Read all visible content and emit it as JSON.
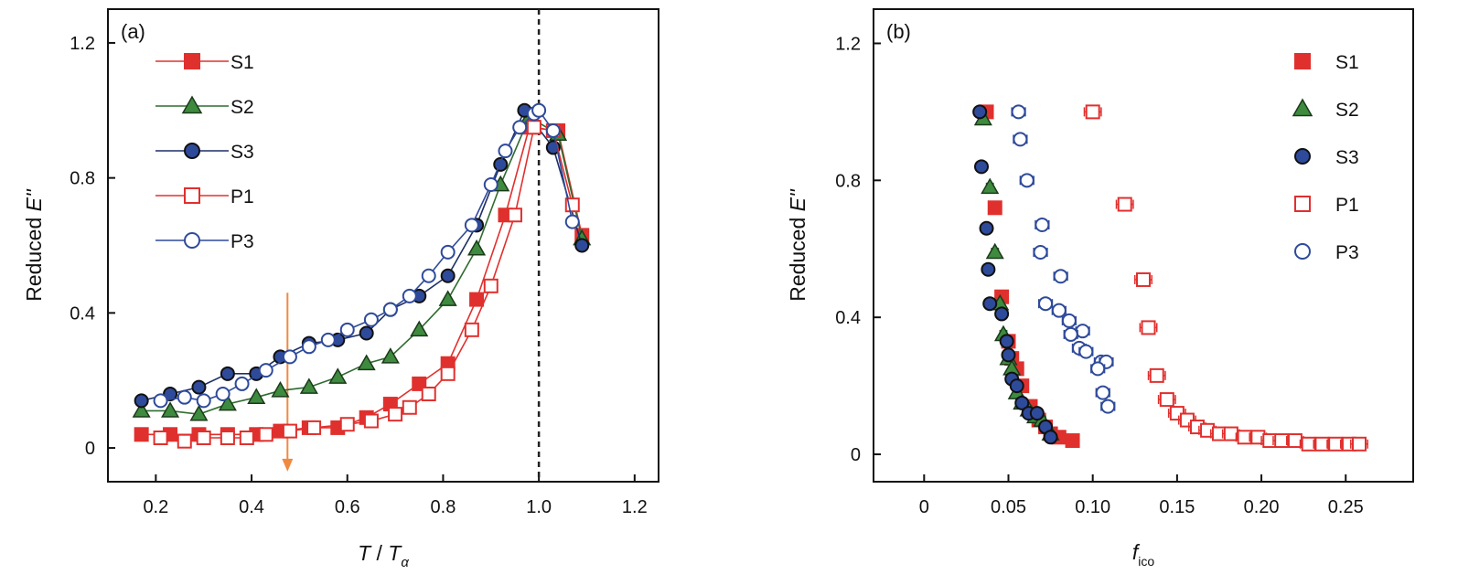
{
  "chart_data": [
    {
      "type": "line",
      "panel_label": "(a)",
      "xlabel": {
        "main": "T",
        "sep": " / ",
        "sym": "T",
        "sub": "α"
      },
      "ylabel": {
        "main": "Reduced ",
        "sym": "E''"
      },
      "xlim": [
        0.1,
        1.25
      ],
      "ylim": [
        -0.1,
        1.3
      ],
      "xticks": [
        0.2,
        0.4,
        0.6,
        0.8,
        1.0,
        1.2
      ],
      "xtick_labels": [
        "0.2",
        "0.4",
        "0.6",
        "0.8",
        "1.0",
        "1.2"
      ],
      "yticks": [
        0,
        0.4,
        0.8,
        1.2
      ],
      "ytick_labels": [
        "0",
        "0.4",
        "0.8",
        "1.2"
      ],
      "legend_position": "top-left",
      "vline": {
        "x": 1.0,
        "style": "dashed",
        "color": "#222222"
      },
      "arrow": {
        "x": 0.475,
        "y_from": 0.46,
        "y_to": -0.07,
        "color": "#f08a40",
        "direction": "down"
      },
      "series": [
        {
          "name": "S1",
          "marker": "square",
          "filled": true,
          "color": "#e0302e",
          "fill": "#e0302e",
          "x": [
            0.17,
            0.23,
            0.29,
            0.35,
            0.41,
            0.46,
            0.52,
            0.58,
            0.64,
            0.69,
            0.75,
            0.81,
            0.87,
            0.93,
            0.98,
            1.04,
            1.09
          ],
          "y": [
            0.04,
            0.04,
            0.04,
            0.04,
            0.04,
            0.05,
            0.06,
            0.06,
            0.09,
            0.13,
            0.19,
            0.25,
            0.44,
            0.69,
            0.95,
            0.94,
            0.63
          ]
        },
        {
          "name": "S2",
          "marker": "triangle",
          "filled": true,
          "color": "#2f6b30",
          "fill": "#3e8a3e",
          "x": [
            0.17,
            0.23,
            0.29,
            0.35,
            0.41,
            0.46,
            0.52,
            0.58,
            0.64,
            0.69,
            0.75,
            0.81,
            0.87,
            0.92,
            0.98,
            1.04,
            1.09
          ],
          "y": [
            0.11,
            0.11,
            0.1,
            0.13,
            0.15,
            0.17,
            0.18,
            0.21,
            0.25,
            0.27,
            0.35,
            0.44,
            0.59,
            0.78,
            0.98,
            0.93,
            0.62
          ]
        },
        {
          "name": "S3",
          "marker": "circle",
          "filled": true,
          "color": "#1d2f66",
          "fill": "#2e4a9a",
          "x": [
            0.17,
            0.23,
            0.29,
            0.35,
            0.41,
            0.46,
            0.52,
            0.58,
            0.64,
            0.69,
            0.75,
            0.81,
            0.87,
            0.92,
            0.97,
            1.03,
            1.09
          ],
          "y": [
            0.14,
            0.16,
            0.18,
            0.22,
            0.22,
            0.27,
            0.31,
            0.32,
            0.34,
            0.41,
            0.45,
            0.51,
            0.66,
            0.84,
            1.0,
            0.89,
            0.6
          ]
        },
        {
          "name": "P1",
          "marker": "square",
          "filled": false,
          "color": "#e0302e",
          "fill": "#ffffff",
          "x": [
            0.21,
            0.26,
            0.3,
            0.35,
            0.39,
            0.43,
            0.48,
            0.53,
            0.6,
            0.65,
            0.7,
            0.73,
            0.77,
            0.81,
            0.86,
            0.9,
            0.95,
            0.99,
            1.03,
            1.07
          ],
          "y": [
            0.03,
            0.02,
            0.03,
            0.03,
            0.03,
            0.04,
            0.05,
            0.06,
            0.07,
            0.08,
            0.1,
            0.12,
            0.16,
            0.22,
            0.35,
            0.48,
            0.69,
            0.95,
            0.94,
            0.72
          ]
        },
        {
          "name": "P3",
          "marker": "circle",
          "filled": false,
          "color": "#2e4a9a",
          "fill": "#ffffff",
          "x": [
            0.21,
            0.26,
            0.3,
            0.34,
            0.38,
            0.43,
            0.48,
            0.52,
            0.56,
            0.6,
            0.65,
            0.69,
            0.73,
            0.77,
            0.81,
            0.86,
            0.9,
            0.93,
            0.96,
            0.99,
            1.0,
            1.03,
            1.07
          ],
          "y": [
            0.14,
            0.15,
            0.14,
            0.16,
            0.19,
            0.23,
            0.27,
            0.3,
            0.32,
            0.35,
            0.38,
            0.41,
            0.45,
            0.51,
            0.58,
            0.66,
            0.78,
            0.88,
            0.95,
            0.99,
            1.0,
            0.94,
            0.67
          ]
        }
      ]
    },
    {
      "type": "scatter",
      "panel_label": "(b)",
      "xlabel": {
        "main": "f",
        "sub": "ico"
      },
      "ylabel": {
        "main": "Reduced ",
        "sym": "E''"
      },
      "xlim": [
        -0.03,
        0.29
      ],
      "ylim": [
        -0.08,
        1.3
      ],
      "xticks": [
        0,
        0.05,
        0.1,
        0.15,
        0.2,
        0.25
      ],
      "xtick_labels": [
        "0",
        "0.05",
        "0.10",
        "0.15",
        "0.20",
        "0.25"
      ],
      "yticks": [
        0,
        0.4,
        0.8,
        1.2
      ],
      "ytick_labels": [
        "0",
        "0.4",
        "0.8",
        "1.2"
      ],
      "legend_position": "top-right",
      "series": [
        {
          "name": "S1",
          "marker": "square",
          "filled": true,
          "color": "#e0302e",
          "fill": "#e0302e",
          "xerr": 0.002,
          "x": [
            0.037,
            0.042,
            0.046,
            0.05,
            0.052,
            0.055,
            0.058,
            0.063,
            0.068,
            0.072,
            0.075,
            0.08,
            0.088
          ],
          "y": [
            1.0,
            0.72,
            0.46,
            0.33,
            0.28,
            0.25,
            0.2,
            0.14,
            0.1,
            0.08,
            0.06,
            0.05,
            0.04
          ]
        },
        {
          "name": "S2",
          "marker": "triangle",
          "filled": true,
          "color": "#2f6b30",
          "fill": "#3e8a3e",
          "xerr": 0.002,
          "x": [
            0.035,
            0.039,
            0.042,
            0.045,
            0.047,
            0.05,
            0.052,
            0.055,
            0.058,
            0.062,
            0.066,
            0.07,
            0.075
          ],
          "y": [
            0.98,
            0.78,
            0.59,
            0.44,
            0.35,
            0.28,
            0.25,
            0.18,
            0.15,
            0.13,
            0.11,
            0.1,
            0.06
          ]
        },
        {
          "name": "S3",
          "marker": "circle",
          "filled": true,
          "color": "#1d2f66",
          "fill": "#2e4a9a",
          "xerr": 0.002,
          "x": [
            0.033,
            0.034,
            0.037,
            0.038,
            0.039,
            0.046,
            0.049,
            0.05,
            0.052,
            0.055,
            0.058,
            0.062,
            0.067,
            0.072,
            0.075
          ],
          "y": [
            1.0,
            0.84,
            0.66,
            0.54,
            0.44,
            0.41,
            0.33,
            0.29,
            0.22,
            0.2,
            0.15,
            0.12,
            0.12,
            0.08,
            0.05
          ]
        },
        {
          "name": "P1",
          "marker": "square",
          "filled": false,
          "color": "#e0302e",
          "fill": "#ffffff",
          "xerr": 0.005,
          "x": [
            0.1,
            0.119,
            0.13,
            0.133,
            0.138,
            0.144,
            0.15,
            0.156,
            0.162,
            0.168,
            0.175,
            0.182,
            0.19,
            0.198,
            0.205,
            0.212,
            0.22,
            0.228,
            0.236,
            0.244,
            0.252,
            0.258
          ],
          "y": [
            1.0,
            0.73,
            0.51,
            0.37,
            0.23,
            0.16,
            0.12,
            0.1,
            0.08,
            0.07,
            0.06,
            0.06,
            0.05,
            0.05,
            0.04,
            0.04,
            0.04,
            0.03,
            0.03,
            0.03,
            0.03,
            0.03
          ]
        },
        {
          "name": "P3",
          "marker": "circle",
          "filled": false,
          "color": "#2e4a9a",
          "fill": "#ffffff",
          "xerr": 0.004,
          "x": [
            0.056,
            0.057,
            0.061,
            0.07,
            0.069,
            0.081,
            0.072,
            0.08,
            0.086,
            0.094,
            0.087,
            0.092,
            0.096,
            0.105,
            0.108,
            0.109,
            0.106,
            0.103
          ],
          "y": [
            1.0,
            0.92,
            0.8,
            0.67,
            0.59,
            0.52,
            0.44,
            0.42,
            0.39,
            0.36,
            0.35,
            0.31,
            0.3,
            0.27,
            0.27,
            0.14,
            0.18,
            0.25
          ]
        }
      ]
    }
  ]
}
